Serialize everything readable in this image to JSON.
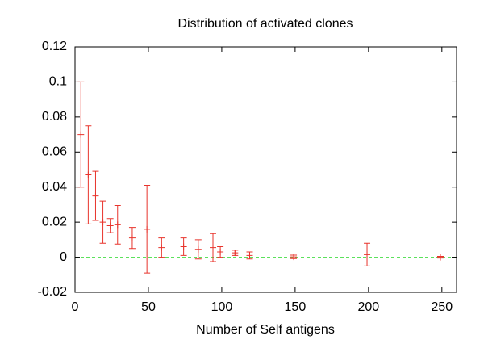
{
  "chart_data": {
    "type": "errorbar",
    "title": "Distribution of activated clones",
    "x_label": "Number of Self antigens",
    "series": [
      {
        "color": "#e8342c",
        "x": [
          4,
          9,
          14,
          19,
          24,
          29,
          39,
          49,
          59,
          74,
          84,
          94,
          99,
          109,
          119,
          149,
          199,
          249
        ],
        "values": [
          0.07,
          0.047,
          0.035,
          0.02,
          0.018,
          0.0185,
          0.011,
          0.016,
          0.0055,
          0.006,
          0.0045,
          0.0055,
          0.003,
          0.0025,
          0.001,
          0.0002,
          0.0015,
          0
        ],
        "errors": [
          0.03,
          0.028,
          0.014,
          0.012,
          0.004,
          0.011,
          0.006,
          0.025,
          0.0055,
          0.005,
          0.0055,
          0.008,
          0.003,
          0.0015,
          0.002,
          0.001,
          0.0065,
          0.0005
        ]
      }
    ],
    "xlim": [
      0,
      260
    ],
    "xticks": [
      0,
      50,
      100,
      150,
      200,
      250
    ],
    "ylim": [
      -0.02,
      0.12
    ],
    "yticks": [
      -0.02,
      0,
      0.02,
      0.04,
      0.06,
      0.08,
      0.1,
      0.12
    ],
    "zero_line_color": "#44dd44"
  }
}
